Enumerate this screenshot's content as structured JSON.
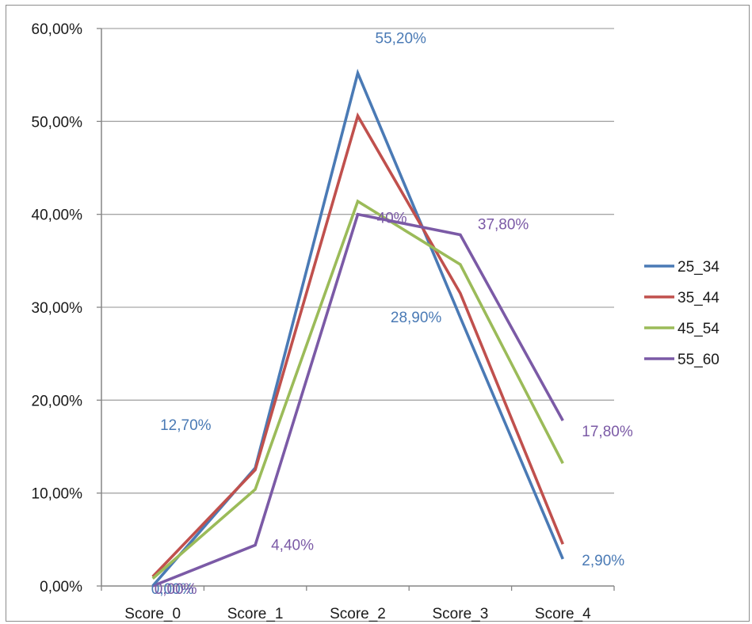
{
  "chart_data": {
    "type": "line",
    "title": "",
    "xlabel": "",
    "ylabel": "",
    "categories": [
      "Score_0",
      "Score_1",
      "Score_2",
      "Score_3",
      "Score_4"
    ],
    "ylim": [
      0,
      60
    ],
    "yticks": [
      "0,00%",
      "10,00%",
      "20,00%",
      "30,00%",
      "40,00%",
      "50,00%",
      "60,00%"
    ],
    "ytick_values": [
      0,
      10,
      20,
      30,
      40,
      50,
      60
    ],
    "grid": true,
    "legend_position": "right",
    "series": [
      {
        "name": "25_34",
        "color": "#4a7ab5",
        "values": [
          0.0,
          12.7,
          55.2,
          28.9,
          2.9
        ]
      },
      {
        "name": "35_44",
        "color": "#c0504d",
        "values": [
          1.0,
          12.5,
          50.6,
          31.5,
          4.5
        ]
      },
      {
        "name": "45_54",
        "color": "#9bbb59",
        "values": [
          0.8,
          10.4,
          41.4,
          34.6,
          13.2
        ]
      },
      {
        "name": "55_60",
        "color": "#7b5aa6",
        "values": [
          0.0,
          4.4,
          40.0,
          37.8,
          17.8
        ]
      }
    ],
    "data_labels": [
      {
        "text": "0,00%",
        "series": 0,
        "index": 0,
        "color": "#4a7ab5"
      },
      {
        "text": "12,70%",
        "series": 0,
        "index": 1,
        "color": "#4a7ab5"
      },
      {
        "text": "55,20%",
        "series": 0,
        "index": 2,
        "color": "#4a7ab5"
      },
      {
        "text": "28,90%",
        "series": 0,
        "index": 3,
        "color": "#4a7ab5"
      },
      {
        "text": "2,90%",
        "series": 0,
        "index": 4,
        "color": "#4a7ab5"
      },
      {
        "text": "0,00%",
        "series": 3,
        "index": 0,
        "color": "#7b5aa6"
      },
      {
        "text": "4,40%",
        "series": 3,
        "index": 1,
        "color": "#7b5aa6"
      },
      {
        "text": "40%",
        "series": 3,
        "index": 2,
        "color": "#7b5aa6"
      },
      {
        "text": "37,80%",
        "series": 3,
        "index": 3,
        "color": "#7b5aa6"
      },
      {
        "text": "17,80%",
        "series": 3,
        "index": 4,
        "color": "#7b5aa6"
      }
    ]
  }
}
